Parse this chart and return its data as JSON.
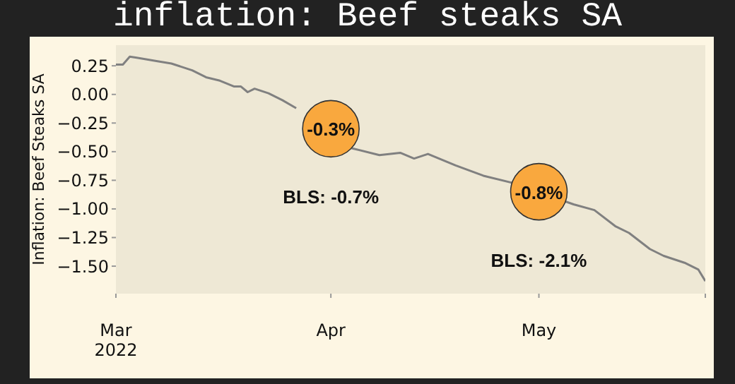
{
  "chart_data": {
    "type": "line",
    "title": "inflation: Beef steaks SA",
    "ylabel": "Inflation: Beef Steaks SA",
    "x": [
      "2022-03-01",
      "2022-03-02",
      "2022-03-03",
      "2022-03-04",
      "2022-03-07",
      "2022-03-09",
      "2022-03-12",
      "2022-03-14",
      "2022-03-16",
      "2022-03-18",
      "2022-03-19",
      "2022-03-20",
      "2022-03-21",
      "2022-03-23",
      "2022-03-25",
      "2022-03-27",
      "2022-03-29",
      "2022-04-04",
      "2022-04-08",
      "2022-04-11",
      "2022-04-13",
      "2022-04-15",
      "2022-04-19",
      "2022-04-23",
      "2022-04-27",
      "2022-05-06",
      "2022-05-09",
      "2022-05-12",
      "2022-05-14",
      "2022-05-17",
      "2022-05-19",
      "2022-05-22",
      "2022-05-24",
      "2022-05-25"
    ],
    "series": [
      {
        "color": "#808080",
        "values": [
          0.26,
          0.26,
          0.33,
          0.32,
          0.29,
          0.27,
          0.21,
          0.15,
          0.12,
          0.07,
          0.07,
          0.02,
          0.05,
          0.01,
          -0.05,
          -0.12,
          null,
          -0.47,
          -0.53,
          -0.51,
          -0.56,
          -0.52,
          -0.62,
          -0.71,
          -0.77,
          -0.96,
          -1.01,
          -1.15,
          -1.21,
          -1.35,
          -1.41,
          -1.47,
          -1.53,
          -1.63
        ]
      }
    ],
    "xlim": [
      "2022-03-01",
      "2022-05-25"
    ],
    "xticks": [
      {
        "value": "2022-03-01",
        "label": "Mar\n2022"
      },
      {
        "value": "2022-04-01",
        "label": "Apr"
      },
      {
        "value": "2022-05-01",
        "label": "May"
      },
      {
        "value": "2022-05-25",
        "label": null
      }
    ],
    "ylim": [
      -1.74,
      0.43
    ],
    "yticks": [
      {
        "value": 0.25,
        "label": "0.25"
      },
      {
        "value": 0,
        "label": "0.00"
      },
      {
        "value": -0.25,
        "label": "−0.25"
      },
      {
        "value": -0.5,
        "label": "−0.50"
      },
      {
        "value": -0.75,
        "label": "−0.75"
      },
      {
        "value": -1,
        "label": "−1.00"
      },
      {
        "value": -1.25,
        "label": "−1.25"
      },
      {
        "value": -1.5,
        "label": "−1.50"
      }
    ],
    "annotations": [
      {
        "text": "-0.3%",
        "x": "2022-04-01",
        "y": -0.3
      },
      "BLS: -0.7%",
      {
        "text": "-0.8%",
        "x": "2022-05-01",
        "y": -0.85
      },
      "BLS: -2.1%"
    ],
    "grid": false,
    "legend": false,
    "marker": "none",
    "line_style": "solid"
  }
}
